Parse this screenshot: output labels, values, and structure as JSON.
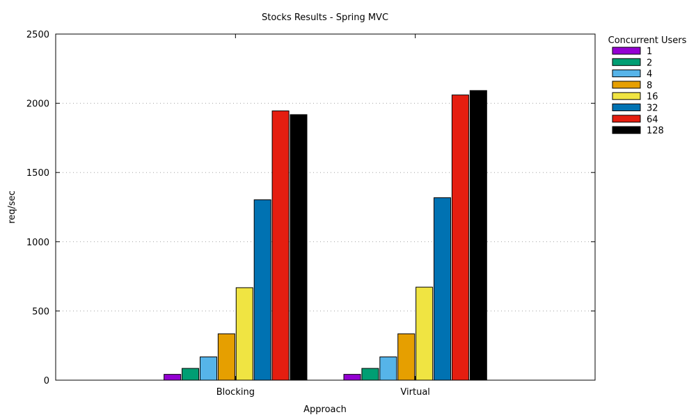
{
  "chart_data": {
    "type": "bar",
    "title": "Stocks Results - Spring MVC",
    "xlabel": "Approach",
    "ylabel": "req/sec",
    "categories": [
      "Blocking",
      "Virtual"
    ],
    "ylim": [
      0,
      2500
    ],
    "yticks": [
      0,
      500,
      1000,
      1500,
      2000,
      2500
    ],
    "grid": true,
    "legend_position": "outside-top-right",
    "legend_title": "Concurrent Users",
    "series": [
      {
        "name": "1",
        "color": "#9400d3",
        "values": [
          42,
          42
        ]
      },
      {
        "name": "2",
        "color": "#009e73",
        "values": [
          85,
          85
        ]
      },
      {
        "name": "4",
        "color": "#56b4e9",
        "values": [
          168,
          168
        ]
      },
      {
        "name": "8",
        "color": "#e69f00",
        "values": [
          335,
          335
        ]
      },
      {
        "name": "16",
        "color": "#f0e442",
        "values": [
          668,
          672
        ]
      },
      {
        "name": "32",
        "color": "#0072b2",
        "values": [
          1303,
          1318
        ]
      },
      {
        "name": "64",
        "color": "#e51e10",
        "values": [
          1945,
          2060
        ]
      },
      {
        "name": "128",
        "color": "#000000",
        "values": [
          1918,
          2092
        ]
      }
    ]
  }
}
